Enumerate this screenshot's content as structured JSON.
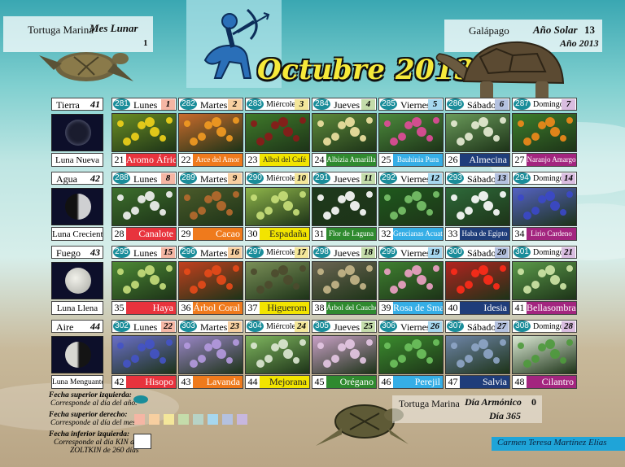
{
  "header": {
    "left_label": "Tortuga Marina",
    "left_title": "Mes Lunar",
    "left_number": "1",
    "right_label": "Galápago",
    "right_title": "Año Solar",
    "right_number": "13",
    "right_year": "Año 2013",
    "title": "Octubre 2013"
  },
  "footer": {
    "label": "Tortuga Marina",
    "title": "Día Armónico",
    "number": "0",
    "sub": "Día 365",
    "author": "Carmen Teresa Martínez Elías"
  },
  "legend": {
    "top_left_title": "Fecha superior izquierda:",
    "top_left_desc": "Corresponde al día del año.",
    "top_right_title": "Fecha superior derecho:",
    "top_right_desc": "Corresponde al día del mes",
    "bottom_left_title": "Fecha inferior izquierda:",
    "bottom_left_desc1": "Corresponde al día KIN del",
    "bottom_left_desc2": "ZOLTKIN de 260 días",
    "swatch_colors": [
      "#f5b6a4",
      "#f7cfa0",
      "#f4e79a",
      "#c4dcaa",
      "#b7d3c6",
      "#a6d7ef",
      "#b4c1df",
      "#c7b7df"
    ]
  },
  "weekdays": [
    "Lunes",
    "Martes",
    "Miércoles",
    "Jueves",
    "Viernes",
    "Sábado",
    "Domingo"
  ],
  "weekday_colors": [
    "#f5b6a4",
    "#f7cfa0",
    "#f4e79a",
    "#c4dcaa",
    "#a6d7ef",
    "#b4c1df",
    "#d9bde0"
  ],
  "weeks": [
    {
      "element": "Tierra",
      "week": "41",
      "moon": "Luna Nueva",
      "days": [
        {
          "kin": "281",
          "num": "1",
          "day": "21",
          "plant": "Aromo África",
          "color": "#e8333d"
        },
        {
          "kin": "282",
          "num": "2",
          "day": "22",
          "plant": "Arce del Amor",
          "color": "#ef7a1c"
        },
        {
          "kin": "283",
          "num": "3",
          "day": "23",
          "plant": "Albol del Café",
          "color": "#f2e400"
        },
        {
          "kin": "284",
          "num": "4",
          "day": "24",
          "plant": "Albizia Amarilla",
          "color": "#2f8a2f"
        },
        {
          "kin": "285",
          "num": "5",
          "day": "25",
          "plant": "Bauhinia Pura",
          "color": "#35aee6"
        },
        {
          "kin": "286",
          "num": "6",
          "day": "26",
          "plant": "Almecina",
          "color": "#1f3d7a"
        },
        {
          "kin": "287",
          "num": "7",
          "day": "27",
          "plant": "Naranjo Amargo",
          "color": "#a3257f"
        }
      ]
    },
    {
      "element": "Agua",
      "week": "42",
      "moon": "Luna Creciente",
      "days": [
        {
          "kin": "288",
          "num": "8",
          "day": "28",
          "plant": "Canalote",
          "color": "#e8333d"
        },
        {
          "kin": "289",
          "num": "9",
          "day": "29",
          "plant": "Cacao",
          "color": "#ef7a1c"
        },
        {
          "kin": "290",
          "num": "10",
          "day": "30",
          "plant": "Espadaña",
          "color": "#f2e400"
        },
        {
          "kin": "291",
          "num": "11",
          "day": "31",
          "plant": "Flor de Laguna",
          "color": "#2f8a2f"
        },
        {
          "kin": "292",
          "num": "12",
          "day": "32",
          "plant": "Gencianas Acuat.",
          "color": "#35aee6"
        },
        {
          "kin": "293",
          "num": "13",
          "day": "33",
          "plant": "Haba de Egipto",
          "color": "#1f3d7a"
        },
        {
          "kin": "294",
          "num": "14",
          "day": "34",
          "plant": "Lirio Cardeno",
          "color": "#a3257f"
        }
      ]
    },
    {
      "element": "Fuego",
      "week": "43",
      "moon": "Luna Llena",
      "days": [
        {
          "kin": "295",
          "num": "15",
          "day": "35",
          "plant": "Haya",
          "color": "#e8333d"
        },
        {
          "kin": "296",
          "num": "16",
          "day": "36",
          "plant": "Árbol Coral",
          "color": "#ef7a1c"
        },
        {
          "kin": "297",
          "num": "17",
          "day": "37",
          "plant": "Higuerom",
          "color": "#f2e400"
        },
        {
          "kin": "298",
          "num": "18",
          "day": "38",
          "plant": "Árbol del Caucho",
          "color": "#2f8a2f"
        },
        {
          "kin": "299",
          "num": "19",
          "day": "39",
          "plant": "Rosa de Sma",
          "color": "#35aee6"
        },
        {
          "kin": "300",
          "num": "20",
          "day": "40",
          "plant": "Idesia",
          "color": "#1f3d7a"
        },
        {
          "kin": "301",
          "num": "21",
          "day": "41",
          "plant": "Bellasombra",
          "color": "#a3257f"
        }
      ]
    },
    {
      "element": "Aire",
      "week": "44",
      "moon": "Luna Menguante",
      "days": [
        {
          "kin": "302",
          "num": "22",
          "day": "42",
          "plant": "Hisopo",
          "color": "#e8333d"
        },
        {
          "kin": "303",
          "num": "23",
          "day": "43",
          "plant": "Lavanda",
          "color": "#ef7a1c"
        },
        {
          "kin": "304",
          "num": "24",
          "day": "44",
          "plant": "Mejorana",
          "color": "#f2e400"
        },
        {
          "kin": "305",
          "num": "25",
          "day": "45",
          "plant": "Orégano",
          "color": "#2f8a2f"
        },
        {
          "kin": "306",
          "num": "26",
          "day": "46",
          "plant": "Perejil",
          "color": "#35aee6"
        },
        {
          "kin": "307",
          "num": "27",
          "day": "47",
          "plant": "Salvia",
          "color": "#1f3d7a"
        },
        {
          "kin": "308",
          "num": "28",
          "day": "48",
          "plant": "Cilantro",
          "color": "#a3257f"
        }
      ]
    }
  ]
}
